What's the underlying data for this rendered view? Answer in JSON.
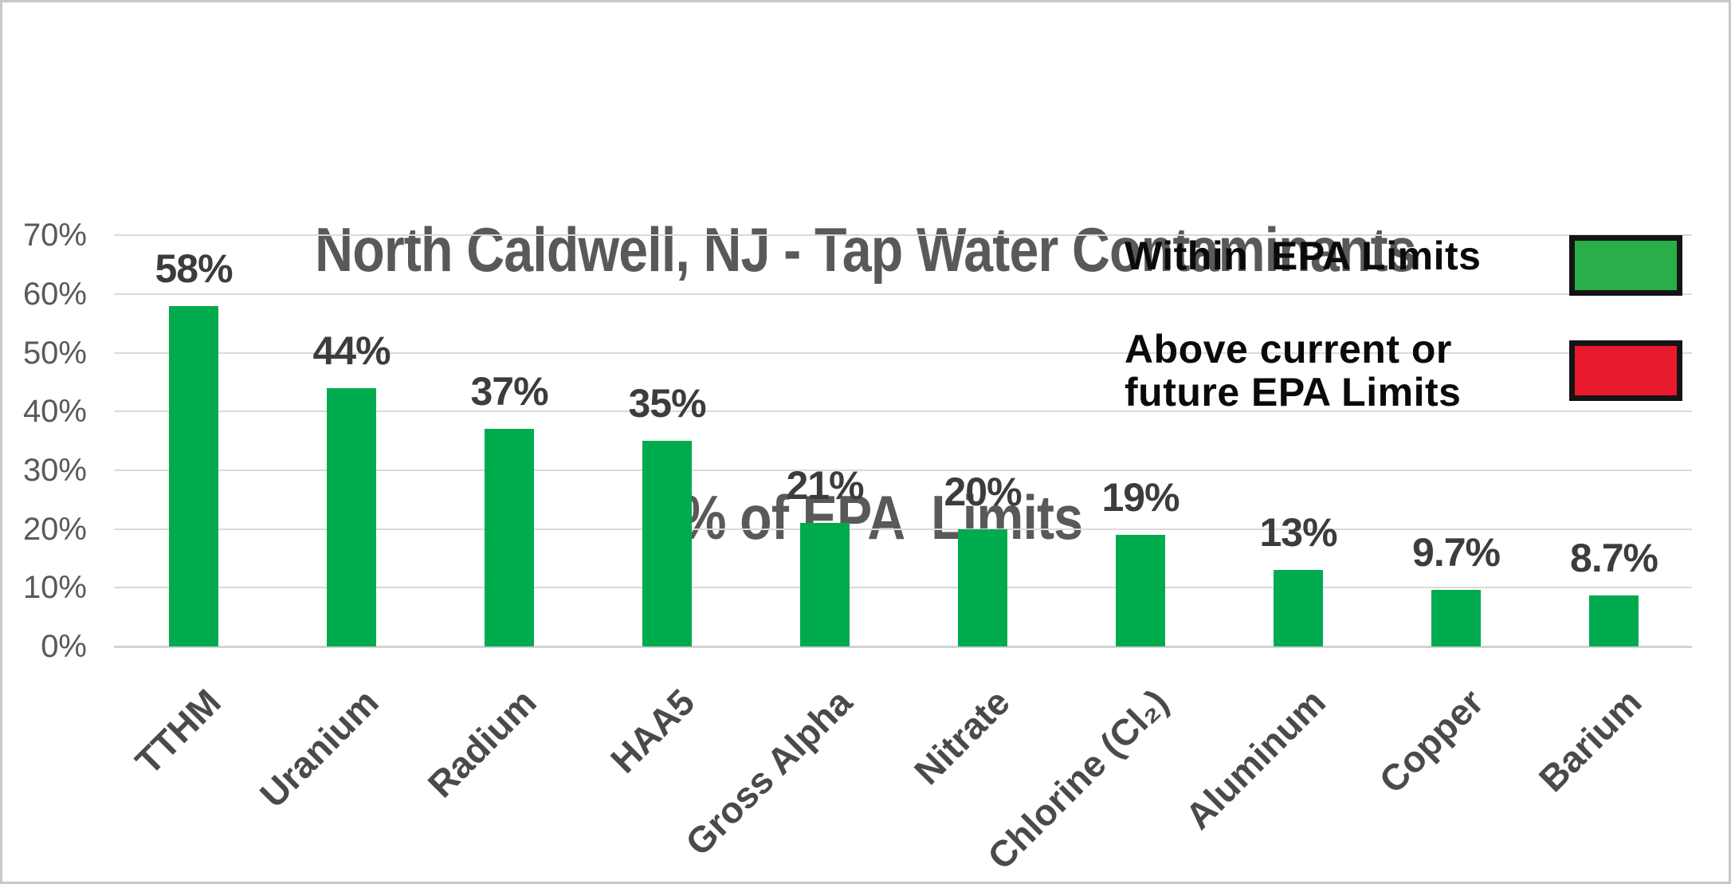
{
  "title": {
    "line1": "North Caldwell, NJ - Tap Water Contaminants",
    "line2": "- % of EPA  Limits"
  },
  "legend": {
    "items": [
      {
        "label": "Within  EPA Limits",
        "color": "#2aae4a",
        "border": "#141414"
      },
      {
        "label": "Above current or\nfuture EPA Limits",
        "color": "#e8192c",
        "border": "#141414"
      }
    ]
  },
  "chart_data": {
    "type": "bar",
    "title": "North Caldwell, NJ - Tap Water Contaminants - % of EPA Limits",
    "categories": [
      "TTHM",
      "Uranium",
      "Radium",
      "HAA5",
      "Gross Alpha",
      "Nitrate",
      "Chlorine (Cl₂)",
      "Aluminum",
      "Copper",
      "Barium"
    ],
    "values": [
      58,
      44,
      37,
      35,
      21,
      20,
      19,
      13,
      9.7,
      8.7
    ],
    "value_labels": [
      "58%",
      "44%",
      "37%",
      "35%",
      "21%",
      "20%",
      "19%",
      "13%",
      "9.7%",
      "8.7%"
    ],
    "bar_color": "#00ab4e",
    "xlabel": "",
    "ylabel": "",
    "ylim": [
      0,
      70
    ],
    "ytick_step": 10,
    "yticks": [
      "0%",
      "10%",
      "20%",
      "30%",
      "40%",
      "50%",
      "60%",
      "70%"
    ],
    "grid": true,
    "legend_position": "top-right",
    "series_note": "all bars are in the 'Within EPA Limits' (green) series; no bars in the red series"
  },
  "colors": {
    "title": "#595959",
    "axis_labels": "#595959",
    "value_labels": "#3c3c3c",
    "category_labels": "#4a4a4a",
    "gridline": "#dadada",
    "axis_line": "#d2d2d2",
    "bar": "#00ab4e",
    "background": "#ffffff",
    "frame_border": "#c8c8c8"
  }
}
